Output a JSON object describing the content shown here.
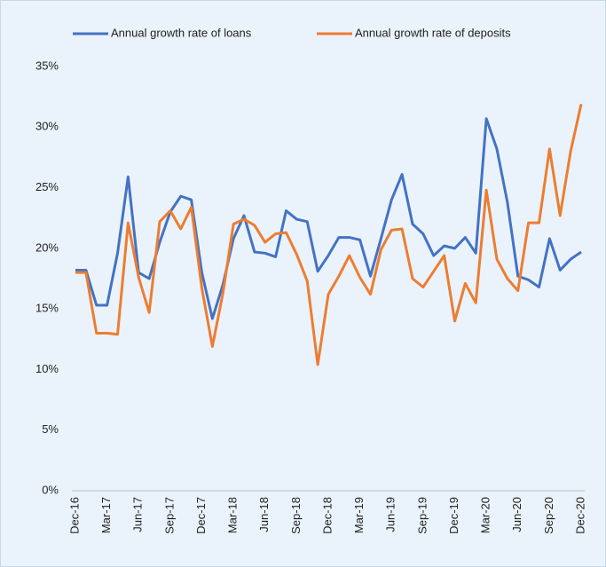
{
  "chart_data": {
    "type": "line",
    "categories": [
      "Dec-16",
      null,
      null,
      "Mar-17",
      null,
      null,
      "Jun-17",
      null,
      null,
      "Sep-17",
      null,
      null,
      "Dec-17",
      null,
      null,
      "Mar-18",
      null,
      null,
      "Jun-18",
      null,
      null,
      "Sep-18",
      null,
      null,
      "Dec-18",
      null,
      null,
      "Mar-19",
      null,
      null,
      "Jun-19",
      null,
      null,
      "Sep-19",
      null,
      null,
      "Dec-19",
      null,
      null,
      "Mar-20",
      null,
      null,
      "Jun-20",
      null,
      null,
      "Sep-20",
      null,
      null,
      "Dec-20"
    ],
    "series": [
      {
        "name": "Annual growth rate of loans",
        "color": "#4472c4",
        "values": [
          18.2,
          18.2,
          15.3,
          15.3,
          19.6,
          25.9,
          18.0,
          17.5,
          20.5,
          23.0,
          24.3,
          24.0,
          18.0,
          14.2,
          17.0,
          20.8,
          22.7,
          19.7,
          19.6,
          19.3,
          23.1,
          22.4,
          22.2,
          18.1,
          19.4,
          20.9,
          20.9,
          20.7,
          17.7,
          20.8,
          24.0,
          26.1,
          22.0,
          21.2,
          19.4,
          20.2,
          20.0,
          20.9,
          19.6,
          30.7,
          28.2,
          23.8,
          17.7,
          17.4,
          16.8,
          20.8,
          18.2,
          19.1,
          19.7
        ]
      },
      {
        "name": "Annual growth rate of deposits",
        "color": "#ed7d31",
        "values": [
          18.0,
          18.0,
          13.0,
          13.0,
          12.9,
          22.1,
          17.6,
          14.7,
          22.2,
          23.1,
          21.6,
          23.4,
          16.7,
          11.9,
          16.3,
          22.0,
          22.4,
          21.9,
          20.5,
          21.2,
          21.3,
          19.5,
          17.3,
          10.4,
          16.2,
          17.7,
          19.4,
          17.6,
          16.2,
          19.9,
          21.5,
          21.6,
          17.5,
          16.8,
          18.1,
          19.4,
          14.0,
          17.1,
          15.5,
          24.8,
          19.1,
          17.5,
          16.5,
          22.1,
          22.1,
          28.2,
          22.7,
          28.0,
          31.9
        ]
      }
    ],
    "ylim": [
      0,
      35
    ],
    "yticks": [
      {
        "value": 0,
        "label": "0%"
      },
      {
        "value": 5,
        "label": "5%"
      },
      {
        "value": 10,
        "label": "10%"
      },
      {
        "value": 15,
        "label": "15%"
      },
      {
        "value": 20,
        "label": "20%"
      },
      {
        "value": 25,
        "label": "25%"
      },
      {
        "value": 30,
        "label": "30%"
      },
      {
        "value": 35,
        "label": "35%"
      }
    ],
    "legend": "top"
  }
}
